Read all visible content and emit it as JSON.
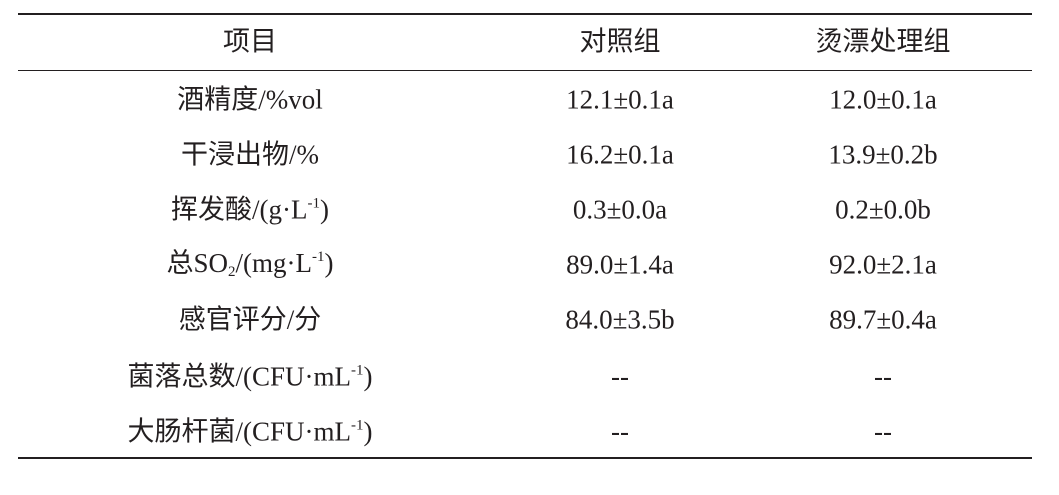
{
  "table": {
    "header": [
      "项目",
      "对照组",
      "烫漂处理组"
    ],
    "rows": [
      {
        "item": [
          {
            "t": "酒精度/%vol"
          }
        ],
        "control": "12.1±0.1a",
        "treated": "12.0±0.1a"
      },
      {
        "item": [
          {
            "t": "干浸出物/%"
          }
        ],
        "control": "16.2±0.1a",
        "treated": "13.9±0.2b"
      },
      {
        "item": [
          {
            "t": "挥发酸/(g·L"
          },
          {
            "sup": "-1"
          },
          {
            "t": ")"
          }
        ],
        "control": "0.3±0.0a",
        "treated": "0.2±0.0b"
      },
      {
        "item": [
          {
            "t": "总SO"
          },
          {
            "sub": "2"
          },
          {
            "t": "/(mg·L"
          },
          {
            "sup": "-1"
          },
          {
            "t": ")"
          }
        ],
        "control": "89.0±1.4a",
        "treated": "92.0±2.1a"
      },
      {
        "item": [
          {
            "t": "感官评分/分"
          }
        ],
        "control": "84.0±3.5b",
        "treated": "89.7±0.4a"
      },
      {
        "item": [
          {
            "t": "菌落总数/(CFU·mL"
          },
          {
            "sup": "-1"
          },
          {
            "t": ")"
          }
        ],
        "control": "--",
        "treated": "--"
      },
      {
        "item": [
          {
            "t": "大肠杆菌/(CFU·mL"
          },
          {
            "sup": "-1"
          },
          {
            "t": ")"
          }
        ],
        "control": "--",
        "treated": "--"
      }
    ]
  }
}
